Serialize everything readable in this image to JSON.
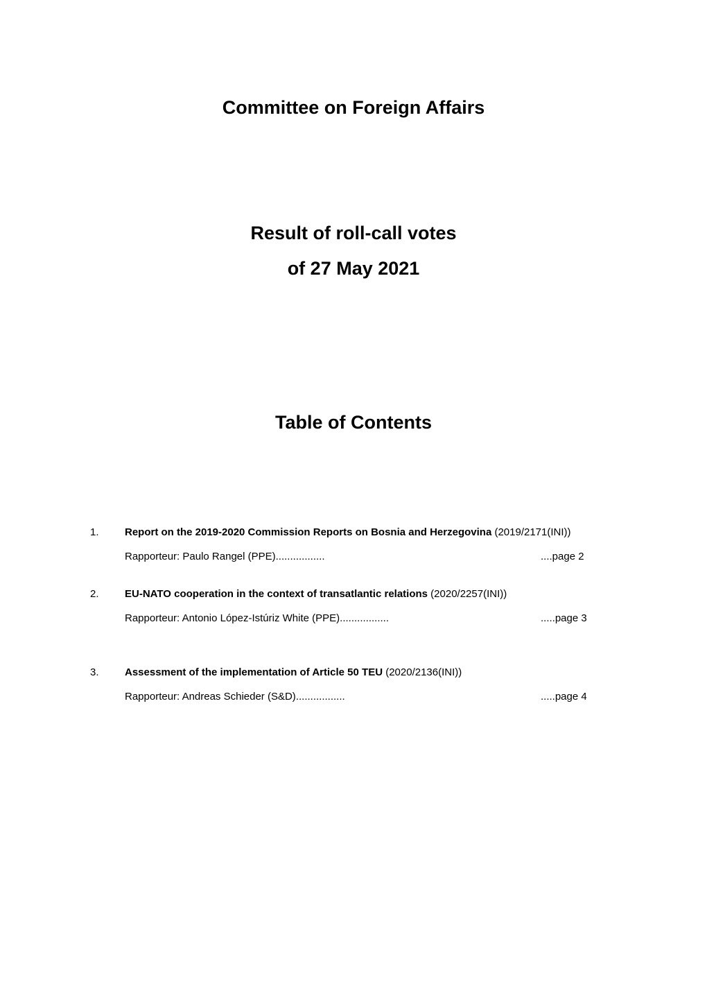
{
  "title": "Committee on Foreign Affairs",
  "subtitle_line1": "Result of roll-call votes",
  "subtitle_line2": "of 27 May 2021",
  "toc_title": "Table of Contents",
  "items": [
    {
      "num": "1.",
      "heading_bold": "Report on the 2019-2020 Commission Reports on Bosnia and Herzegovina",
      "heading_rest": " (2019/2171(INI))",
      "rapporteur_label": "Rapporteur: ",
      "rapporteur_name": "Paulo Rangel (PPE)",
      "dots": ".................",
      "page": "....page 2"
    },
    {
      "num": "2.",
      "heading_bold": "EU-NATO cooperation in the context of transatlantic relations",
      "heading_rest": " (2020/2257(INI))",
      "rapporteur_label": "Rapporteur: ",
      "rapporteur_name": "Antonio López-Istúriz White (PPE)",
      "dots": ".................",
      "page": ".....page 3"
    },
    {
      "num": "3.",
      "heading_bold": "Assessment of the implementation of Article 50 TEU",
      "heading_rest": " (2020/2136(INI))",
      "rapporteur_label": "Rapporteur: ",
      "rapporteur_name": "Andreas Schieder (S&D)",
      "dots": ".................",
      "page": ".....page 4"
    }
  ]
}
